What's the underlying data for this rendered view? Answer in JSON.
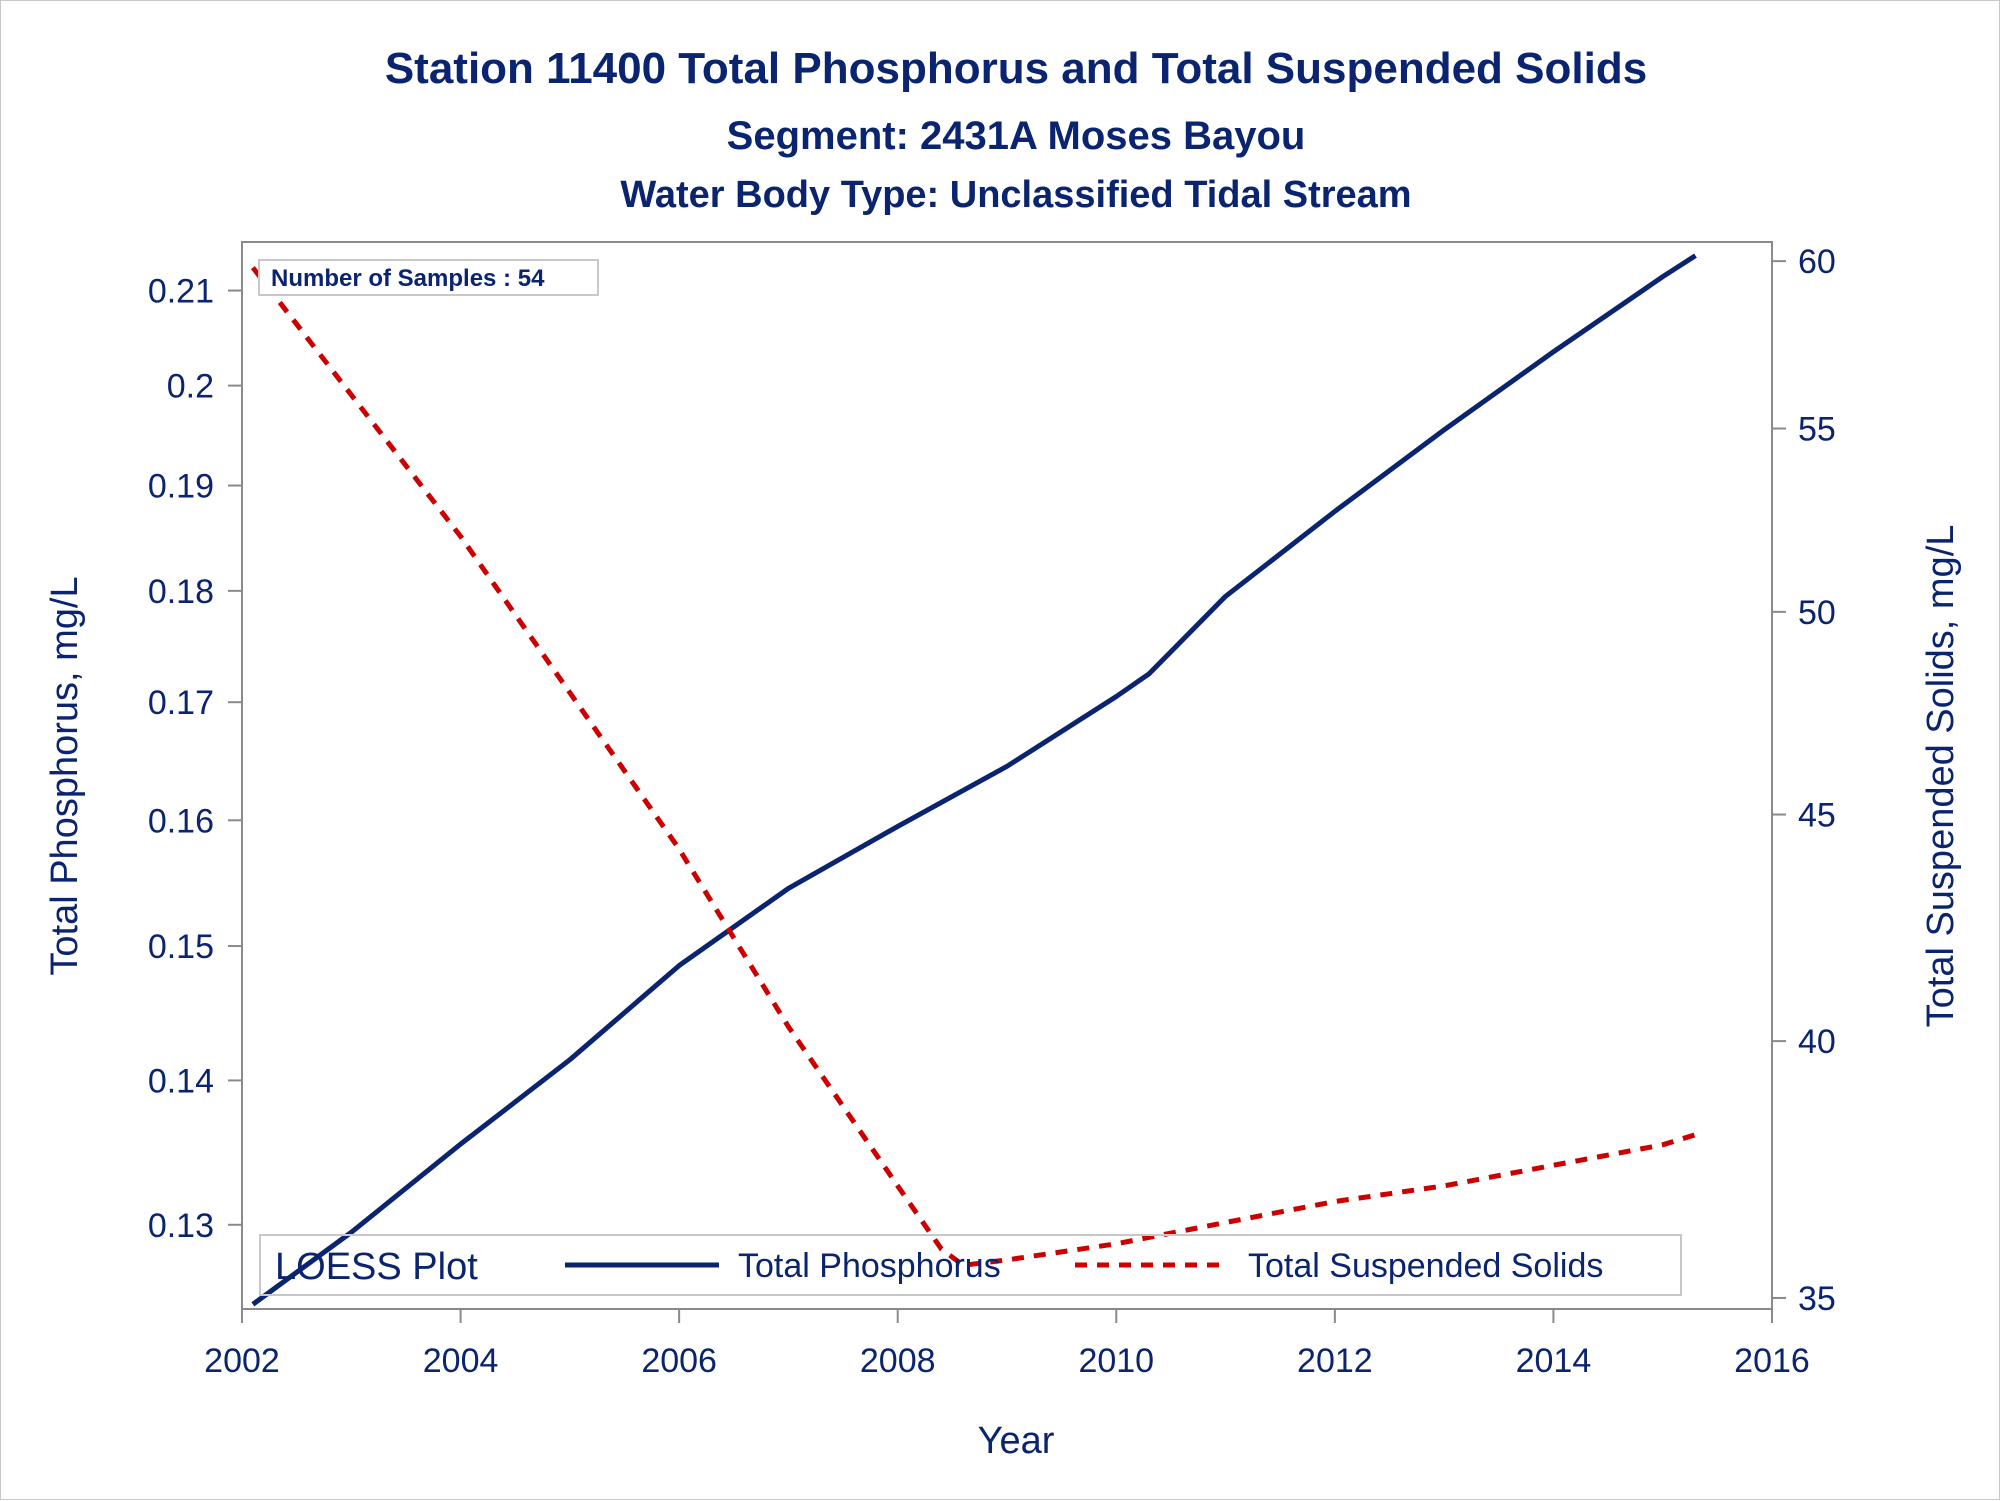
{
  "colors": {
    "text": "#0b2470",
    "phosphorus_line": "#0b2470",
    "tss_line": "#cc0000",
    "axis": "#8a8a8a",
    "background": "#ffffff"
  },
  "chart_data": {
    "type": "line",
    "title": "Station 11400  Total Phosphorus and Total Suspended Solids",
    "subtitle": "Segment: 2431A  Moses Bayou",
    "subtitle2": "Water Body Type: Unclassified Tidal Stream",
    "xlabel": "Year",
    "ylabel": "Total Phosphorus, mg/L",
    "y2label": "Total Suspended Solids, mg/L",
    "xlim": [
      2002,
      2016
    ],
    "xticks": [
      2002,
      2004,
      2006,
      2008,
      2010,
      2012,
      2014,
      2016
    ],
    "xtick_labels": [
      "2002",
      "2004",
      "2006",
      "2008",
      "2010",
      "2012",
      "2014",
      "2016"
    ],
    "y_scale": "log",
    "ylim": [
      0.1245,
      0.2153
    ],
    "yticks": [
      0.13,
      0.14,
      0.15,
      0.16,
      0.17,
      0.18,
      0.19,
      0.2,
      0.21
    ],
    "ytick_labels": [
      "0.13",
      "0.14",
      "0.15",
      "0.16",
      "0.17",
      "0.18",
      "0.19",
      "0.2",
      "0.21"
    ],
    "y2_scale": "log",
    "y2lim": [
      34.8,
      60.6
    ],
    "y2ticks": [
      35,
      40,
      45,
      50,
      55,
      60
    ],
    "y2tick_labels": [
      "35",
      "40",
      "45",
      "50",
      "55",
      "60"
    ],
    "annotation": "Number of Samples : 54",
    "legend": {
      "title": "LOESS Plot",
      "position": "bottom-inside",
      "entries": [
        "Total Phosphorus",
        "Total Suspended Solids"
      ]
    },
    "grid": false,
    "series": [
      {
        "name": "Total Phosphorus",
        "axis": "left",
        "style": "solid",
        "x": [
          2002.1,
          2003,
          2004,
          2005,
          2006,
          2007,
          2008,
          2009,
          2010,
          2010.3,
          2011,
          2012,
          2013,
          2014,
          2015,
          2015.3
        ],
        "y": [
          0.1248,
          0.1295,
          0.1355,
          0.1415,
          0.1485,
          0.1545,
          0.1595,
          0.1645,
          0.1705,
          0.1725,
          0.1795,
          0.1875,
          0.1955,
          0.2035,
          0.2115,
          0.2138
        ]
      },
      {
        "name": "Total Suspended Solids",
        "axis": "right",
        "style": "dashed",
        "x": [
          2002.1,
          2004,
          2006,
          2007,
          2008,
          2008.4,
          2008.6,
          2009,
          2010,
          2011,
          2012,
          2013,
          2014,
          2015,
          2015.3
        ],
        "y": [
          59.8,
          52.0,
          44.2,
          40.3,
          37.1,
          35.9,
          35.6,
          35.7,
          36.0,
          36.4,
          36.8,
          37.1,
          37.5,
          37.9,
          38.1
        ]
      }
    ]
  }
}
